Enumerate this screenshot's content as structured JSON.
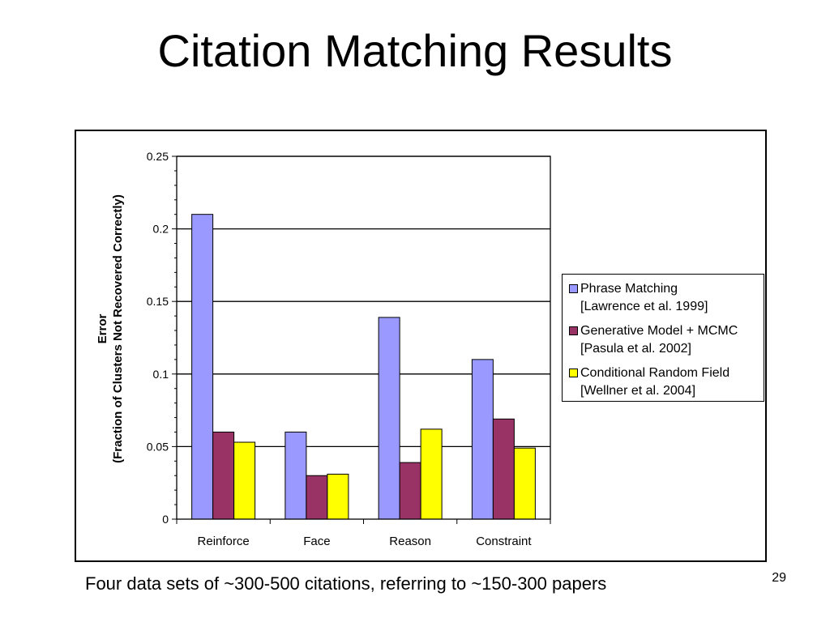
{
  "slide": {
    "title": "Citation Matching Results",
    "caption": "Four data sets of ~300-500 citations, referring to ~150-300 papers",
    "page_number": "29"
  },
  "chart_data": {
    "type": "bar",
    "categories": [
      "Reinforce",
      "Face",
      "Reason",
      "Constraint"
    ],
    "series": [
      {
        "name": "Phrase Matching",
        "name_line2": "[Lawrence et al. 1999]",
        "color": "#9999ff",
        "values": [
          0.21,
          0.06,
          0.139,
          0.11
        ]
      },
      {
        "name": "Generative Model + MCMC",
        "name_line2": "[Pasula et al. 2002]",
        "color": "#993366",
        "values": [
          0.06,
          0.03,
          0.039,
          0.069
        ]
      },
      {
        "name": "Conditional Random Field",
        "name_line2": "[Wellner et al. 2004]",
        "color": "#ffff00",
        "values": [
          0.053,
          0.031,
          0.062,
          0.049
        ]
      }
    ],
    "ylabel": "Error",
    "ylabel_line2": "(Fraction of Clusters Not Recovered Correctly)",
    "xlabel": "",
    "ylim": [
      0,
      0.25
    ],
    "yticks": [
      "0",
      "0.05",
      "0.1",
      "0.15",
      "0.2",
      "0.25"
    ],
    "grid": true,
    "legend_position": "right"
  }
}
